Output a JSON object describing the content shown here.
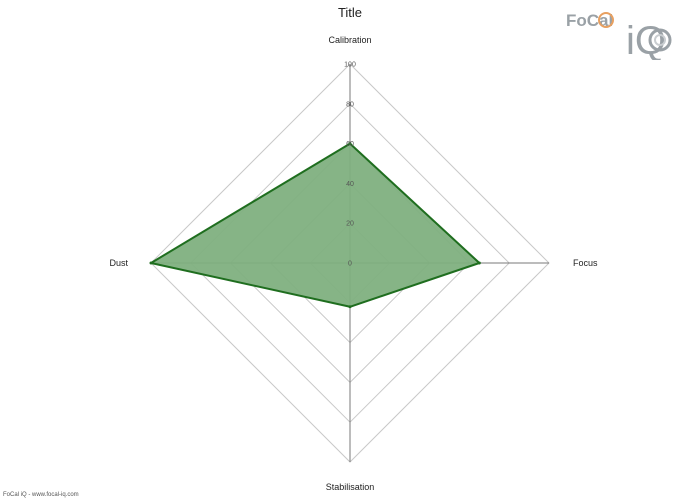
{
  "chart_data": {
    "type": "radar",
    "title": "Title",
    "categories": [
      "Calibration",
      "Focus",
      "Stabilisation",
      "Dust"
    ],
    "series": [
      {
        "values": [
          60,
          65,
          22,
          100
        ]
      }
    ],
    "rlim": [
      0,
      100
    ],
    "ticks": [
      "0",
      "20",
      "40",
      "60",
      "80",
      "100"
    ],
    "grid": true,
    "fill_color": "#7fb07f",
    "line_color": "#1f6e1f"
  },
  "logo": {
    "brand": "FoCal",
    "suffix": "iQ"
  },
  "footer": "FoCal iQ - www.focal-iq.com"
}
